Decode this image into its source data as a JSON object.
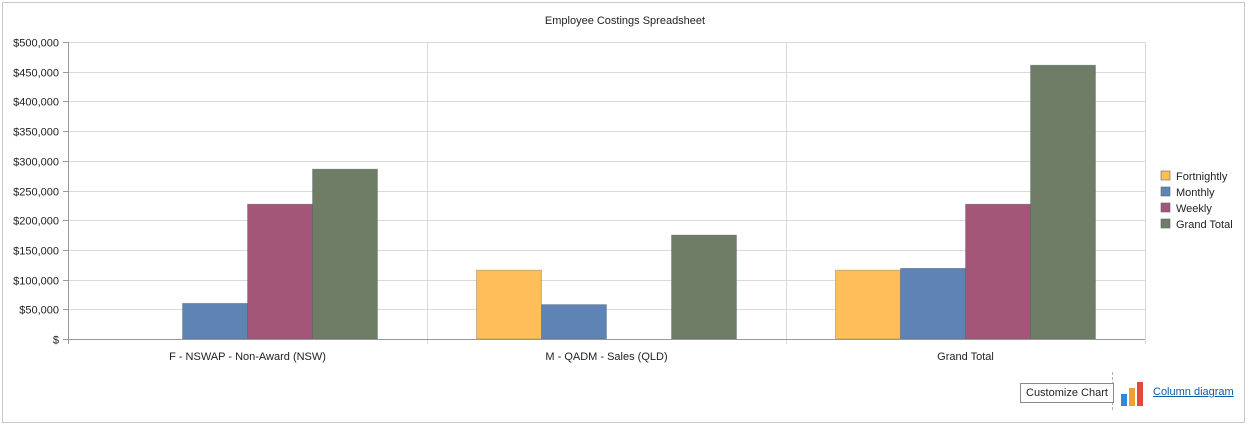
{
  "chart_data": {
    "type": "bar",
    "title": "Employee Costings Spreadsheet",
    "categories": [
      "F - NSWAP - Non-Award (NSW)",
      "M - QADM - Sales (QLD)",
      "Grand Total"
    ],
    "series": [
      {
        "name": "Fortnightly",
        "color": "#ffbe5a",
        "values": [
          null,
          116000,
          116000
        ]
      },
      {
        "name": "Monthly",
        "color": "#5e84b6",
        "values": [
          60000,
          58000,
          119000
        ]
      },
      {
        "name": "Weekly",
        "color": "#a35677",
        "values": [
          227000,
          null,
          227000
        ]
      },
      {
        "name": "Grand Total",
        "color": "#6f7d66",
        "values": [
          286000,
          175000,
          461000
        ]
      }
    ],
    "ylim": [
      0,
      500000
    ],
    "yticks": [
      "$",
      "$50,000",
      "$100,000",
      "$150,000",
      "$200,000",
      "$250,000",
      "$300,000",
      "$350,000",
      "$400,000",
      "$450,000",
      "$500,000"
    ],
    "grid": true,
    "legend_position": "right"
  },
  "footer": {
    "customize_label": "Customize Chart",
    "diagram_link_label": "Column diagram",
    "icon": "column-chart-icon"
  }
}
